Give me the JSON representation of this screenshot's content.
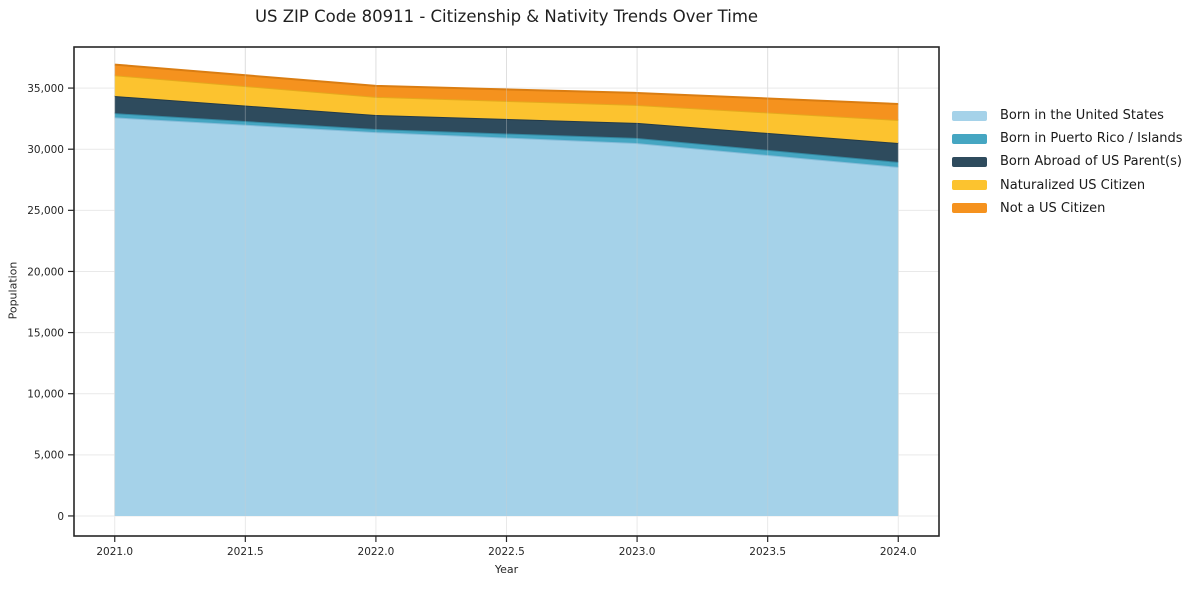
{
  "title": "US ZIP Code 80911 - Citizenship & Nativity Trends Over Time",
  "chart_data": {
    "type": "area",
    "stacked": true,
    "title": "US ZIP Code 80911 - Citizenship & Nativity Trends Over Time",
    "xlabel": "Year",
    "ylabel": "Population",
    "x": [
      2021,
      2022,
      2023,
      2024
    ],
    "series": [
      {
        "name": "Born in the United States",
        "color": "#a5d2e9",
        "edge_color": "#85bcd9",
        "values": [
          32600,
          31400,
          30500,
          28550
        ]
      },
      {
        "name": "Born in Puerto Rico / Islands",
        "color": "#45a6c2",
        "edge_color": "#33869f",
        "values": [
          350,
          250,
          420,
          410
        ]
      },
      {
        "name": "Born Abroad of US Parent(s)",
        "color": "#2e4b5d",
        "edge_color": "#223a49",
        "values": [
          1400,
          1150,
          1230,
          1550
        ]
      },
      {
        "name": "Naturalized US Citizen",
        "color": "#fcc32f",
        "edge_color": "#e5a91d",
        "values": [
          1700,
          1480,
          1470,
          1880
        ]
      },
      {
        "name": "Not a US Citizen",
        "color": "#f5921e",
        "edge_color": "#da7d12",
        "values": [
          870,
          900,
          980,
          1310
        ]
      }
    ],
    "totals_by_year": [
      36920,
      35180,
      34600,
      33700
    ],
    "xticks": [
      2021.0,
      2021.5,
      2022.0,
      2022.5,
      2023.0,
      2023.5,
      2024.0
    ],
    "yticks": [
      0,
      5000,
      10000,
      15000,
      20000,
      25000,
      30000,
      35000
    ],
    "xlim": [
      2020.844,
      2024.156
    ],
    "ylim": [
      -1640,
      38360
    ],
    "grid": true,
    "legend_position": "right-outside"
  }
}
